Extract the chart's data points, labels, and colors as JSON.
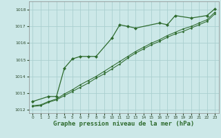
{
  "bg_color": "#cce8e8",
  "grid_color": "#aacfcf",
  "line_color": "#2d6a2d",
  "marker_color": "#2d6a2d",
  "xlabel": "Graphe pression niveau de la mer (hPa)",
  "xlabel_fontsize": 6.5,
  "ylim": [
    1011.8,
    1018.5
  ],
  "xlim": [
    -0.5,
    23.5
  ],
  "yticks": [
    1012,
    1013,
    1014,
    1015,
    1016,
    1017,
    1018
  ],
  "xticks": [
    0,
    1,
    2,
    3,
    4,
    5,
    6,
    7,
    8,
    9,
    10,
    11,
    12,
    13,
    14,
    15,
    16,
    17,
    18,
    19,
    20,
    21,
    22,
    23
  ],
  "series1_x": [
    0,
    2,
    3,
    4,
    5,
    6,
    7,
    8,
    10,
    11,
    12,
    13,
    16,
    17,
    18,
    20,
    22,
    23
  ],
  "series1_y": [
    1012.5,
    1012.8,
    1012.8,
    1014.5,
    1015.05,
    1015.2,
    1015.2,
    1015.2,
    1016.3,
    1017.1,
    1017.0,
    1016.9,
    1017.2,
    1017.1,
    1017.65,
    1017.5,
    1017.65,
    1018.05
  ],
  "series2_x": [
    0,
    1,
    2,
    3,
    4,
    5,
    6,
    7,
    8,
    9,
    10,
    11,
    12,
    13,
    14,
    15,
    16,
    17,
    18,
    19,
    20,
    21,
    22,
    23
  ],
  "series2_y": [
    1012.25,
    1012.3,
    1012.5,
    1012.65,
    1012.95,
    1013.2,
    1013.5,
    1013.75,
    1014.0,
    1014.3,
    1014.6,
    1014.9,
    1015.2,
    1015.5,
    1015.75,
    1016.0,
    1016.2,
    1016.45,
    1016.65,
    1016.85,
    1017.0,
    1017.2,
    1017.4,
    1017.85
  ],
  "series3_x": [
    0,
    1,
    2,
    3,
    4,
    5,
    6,
    7,
    8,
    9,
    10,
    11,
    12,
    13,
    14,
    15,
    16,
    17,
    18,
    19,
    20,
    21,
    22,
    23
  ],
  "series3_y": [
    1012.2,
    1012.25,
    1012.45,
    1012.6,
    1012.85,
    1013.1,
    1013.35,
    1013.6,
    1013.9,
    1014.15,
    1014.45,
    1014.75,
    1015.1,
    1015.4,
    1015.65,
    1015.9,
    1016.1,
    1016.35,
    1016.55,
    1016.7,
    1016.9,
    1017.1,
    1017.3,
    1017.75
  ]
}
